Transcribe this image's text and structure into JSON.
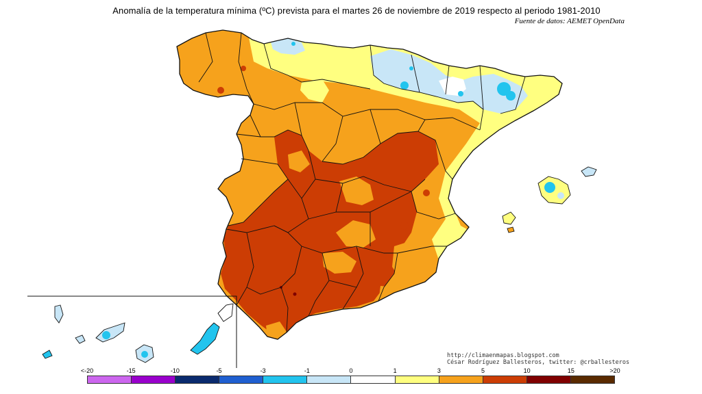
{
  "title": "Anomalía de la temperatura mínima (ºC) prevista para el martes 26 de noviembre de 2019 respecto al periodo 1981-2010",
  "source": "Fuente de datos: AEMET OpenData",
  "credits": {
    "blog": "http://climaenmapas.blogspot.com",
    "author": "César Rodríguez Ballesteros, twitter: @crballesteros"
  },
  "legend": {
    "labels": [
      "<-20",
      "-15",
      "-10",
      "-5",
      "-3",
      "-1",
      "0",
      "1",
      "3",
      "5",
      "10",
      "15",
      ">20"
    ],
    "bins": [
      {
        "range": "<-20 to -15",
        "color": "#cc66ee"
      },
      {
        "range": "-15 to -10",
        "color": "#9900cc"
      },
      {
        "range": "-10 to -5",
        "color": "#0a2a6e"
      },
      {
        "range": "-5 to -3",
        "color": "#1f5fd0"
      },
      {
        "range": "-3 to -1",
        "color": "#22c4ee"
      },
      {
        "range": "-1 to 0",
        "color": "#c8e6f7"
      },
      {
        "range": "0 to 1",
        "color": "#ffffff"
      },
      {
        "range": "1 to 3",
        "color": "#ffff80"
      },
      {
        "range": "3 to 5",
        "color": "#f6a21c"
      },
      {
        "range": "5 to 10",
        "color": "#cc3d04"
      },
      {
        "range": "10 to 15",
        "color": "#800000"
      },
      {
        "range": "15 to >20",
        "color": "#5a2a00"
      }
    ]
  },
  "regions": {
    "galicia": "#f6a21c",
    "cantabrian_coast": "#ffff80",
    "navarra_pyrenees": "#c8e6f7",
    "pyrenees_cold_spots": "#22c4ee",
    "catalonia": "#ffff80",
    "castilla_leon": "#f6a21c",
    "central_plateau": "#cc3d04",
    "andalusia": "#cc3d04",
    "levante_coast": "#ffff80",
    "balearics": "#22c4ee",
    "canary_islands": "#22c4ee"
  }
}
